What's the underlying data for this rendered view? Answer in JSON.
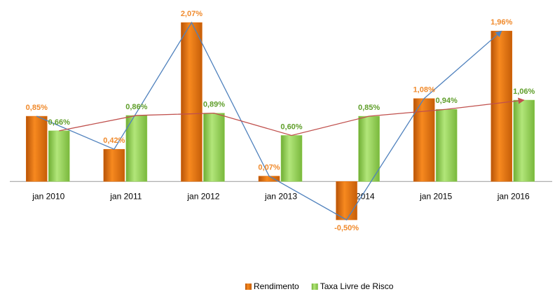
{
  "chart_data": {
    "type": "bar",
    "categories": [
      "jan 2010",
      "jan 2011",
      "jan 2012",
      "jan 2013",
      "jan 2014",
      "jan 2015",
      "jan 2016"
    ],
    "series": [
      {
        "name": "Rendimento",
        "color": "#e46c0a",
        "line_color": "#4f81bd",
        "values": [
          0.85,
          0.42,
          2.07,
          0.07,
          -0.5,
          1.08,
          1.96
        ],
        "value_labels": [
          "0,85%",
          "0,42%",
          "2,07%",
          "0,07%",
          "-0,50%",
          "1,08%",
          "1,96%"
        ]
      },
      {
        "name": "Taxa Livre de Risco",
        "color": "#92d050",
        "line_color": "#c0504d",
        "values": [
          0.66,
          0.86,
          0.89,
          0.6,
          0.85,
          0.94,
          1.06
        ],
        "value_labels": [
          "0,66%",
          "0,86%",
          "0,89%",
          "0,60%",
          "0,85%",
          "0,94%",
          "1,06%"
        ]
      }
    ],
    "ylim": [
      -0.7,
      2.2
    ],
    "legend": "bottom"
  }
}
